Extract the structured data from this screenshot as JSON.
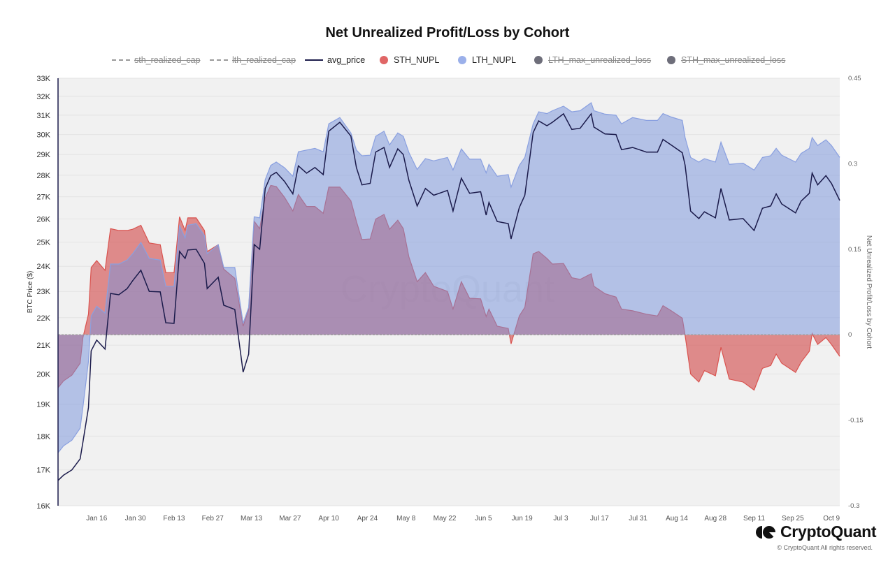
{
  "chart_data": {
    "type": "area",
    "title": "Net Unrealized Profit/Loss by Cohort",
    "ylabel_left": "BTC Price ($)",
    "ylabel_right": "Net Unrealized Profit/Loss by Cohort",
    "y_left_scale": "log",
    "y_left_range": [
      16000,
      33000
    ],
    "y_left_ticks": [
      "16K",
      "17K",
      "18K",
      "19K",
      "20K",
      "21K",
      "22K",
      "23K",
      "24K",
      "25K",
      "26K",
      "27K",
      "28K",
      "29K",
      "30K",
      "31K",
      "32K",
      "33K"
    ],
    "y_left_tick_values": [
      16000,
      17000,
      18000,
      19000,
      20000,
      21000,
      22000,
      23000,
      24000,
      25000,
      26000,
      27000,
      28000,
      29000,
      30000,
      31000,
      32000,
      33000
    ],
    "y_right_range": [
      -0.3,
      0.45
    ],
    "y_right_ticks": [
      "0.45",
      "0.3",
      "0.15",
      "0",
      "-0.15",
      "-0.3"
    ],
    "y_right_tick_values": [
      0.45,
      0.3,
      0.15,
      0,
      -0.15,
      -0.3
    ],
    "x_range": [
      "2023-01-02",
      "2023-10-12"
    ],
    "x_ticks": [
      "Jan 16",
      "Jan 30",
      "Feb 13",
      "Feb 27",
      "Mar 13",
      "Mar 27",
      "Apr 10",
      "Apr 24",
      "May 8",
      "May 22",
      "Jun 5",
      "Jun 19",
      "Jul 3",
      "Jul 17",
      "Jul 31",
      "Aug 14",
      "Aug 28",
      "Sep 11",
      "Sep 25",
      "Oct 9"
    ],
    "x_tick_dates": [
      "2023-01-16",
      "2023-01-30",
      "2023-02-13",
      "2023-02-27",
      "2023-03-13",
      "2023-03-27",
      "2023-04-10",
      "2023-04-24",
      "2023-05-08",
      "2023-05-22",
      "2023-06-05",
      "2023-06-19",
      "2023-07-03",
      "2023-07-17",
      "2023-07-31",
      "2023-08-14",
      "2023-08-28",
      "2023-09-11",
      "2023-09-25",
      "2023-10-09"
    ],
    "grid": true,
    "legend_position": "top",
    "watermark": "CryptoQuant",
    "x": [
      "2023-01-02",
      "2023-01-04",
      "2023-01-07",
      "2023-01-10",
      "2023-01-11",
      "2023-01-13",
      "2023-01-14",
      "2023-01-16",
      "2023-01-19",
      "2023-01-21",
      "2023-01-24",
      "2023-01-27",
      "2023-01-29",
      "2023-02-01",
      "2023-02-04",
      "2023-02-08",
      "2023-02-10",
      "2023-02-13",
      "2023-02-15",
      "2023-02-17",
      "2023-02-18",
      "2023-02-21",
      "2023-02-24",
      "2023-02-25",
      "2023-03-01",
      "2023-03-03",
      "2023-03-07",
      "2023-03-10",
      "2023-03-12",
      "2023-03-14",
      "2023-03-16",
      "2023-03-18",
      "2023-03-20",
      "2023-03-22",
      "2023-03-25",
      "2023-03-28",
      "2023-03-30",
      "2023-04-02",
      "2023-04-05",
      "2023-04-08",
      "2023-04-10",
      "2023-04-14",
      "2023-04-18",
      "2023-04-20",
      "2023-04-22",
      "2023-04-25",
      "2023-04-27",
      "2023-04-30",
      "2023-05-02",
      "2023-05-05",
      "2023-05-07",
      "2023-05-09",
      "2023-05-12",
      "2023-05-15",
      "2023-05-18",
      "2023-05-23",
      "2023-05-25",
      "2023-05-28",
      "2023-05-31",
      "2023-06-04",
      "2023-06-06",
      "2023-06-07",
      "2023-06-10",
      "2023-06-14",
      "2023-06-15",
      "2023-06-18",
      "2023-06-20",
      "2023-06-23",
      "2023-06-25",
      "2023-06-28",
      "2023-06-30",
      "2023-07-04",
      "2023-07-07",
      "2023-07-10",
      "2023-07-14",
      "2023-07-15",
      "2023-07-19",
      "2023-07-23",
      "2023-07-25",
      "2023-07-29",
      "2023-08-03",
      "2023-08-07",
      "2023-08-09",
      "2023-08-12",
      "2023-08-16",
      "2023-08-17",
      "2023-08-19",
      "2023-08-22",
      "2023-08-24",
      "2023-08-28",
      "2023-08-30",
      "2023-09-02",
      "2023-09-07",
      "2023-09-11",
      "2023-09-14",
      "2023-09-17",
      "2023-09-19",
      "2023-09-21",
      "2023-09-26",
      "2023-09-28",
      "2023-10-01",
      "2023-10-02",
      "2023-10-04",
      "2023-10-07",
      "2023-10-09",
      "2023-10-12"
    ],
    "series": [
      {
        "name": "sth_realized_cap",
        "axis": "left",
        "style": "dashed",
        "visible": false,
        "color": "#999999"
      },
      {
        "name": "lth_realized_cap",
        "axis": "left",
        "style": "dashed",
        "visible": false,
        "color": "#999999"
      },
      {
        "name": "avg_price",
        "axis": "left",
        "style": "line",
        "visible": true,
        "color": "#1b1b4b",
        "values": [
          16700,
          16850,
          17000,
          17320,
          17820,
          18890,
          20800,
          21180,
          20860,
          22920,
          22870,
          23110,
          23420,
          23840,
          23000,
          22980,
          21810,
          21790,
          24610,
          24320,
          24670,
          24700,
          24120,
          23110,
          23560,
          22470,
          22310,
          20060,
          20680,
          24900,
          24700,
          27380,
          27980,
          28140,
          27710,
          27130,
          28450,
          28100,
          28370,
          28030,
          30170,
          30630,
          29920,
          28370,
          27550,
          27620,
          29120,
          29350,
          28370,
          29280,
          29000,
          27770,
          26580,
          27380,
          27070,
          27290,
          26350,
          27860,
          27160,
          27230,
          26170,
          26740,
          25890,
          25800,
          25140,
          26510,
          27070,
          30100,
          30700,
          30450,
          30630,
          31070,
          30260,
          30320,
          31070,
          30380,
          30030,
          30000,
          29240,
          29350,
          29120,
          29120,
          29750,
          29470,
          29090,
          28480,
          26350,
          26020,
          26320,
          26050,
          27380,
          25960,
          26020,
          25500,
          26480,
          26580,
          27130,
          26670,
          26270,
          26800,
          27160,
          28100,
          27550,
          27980,
          27620,
          26830
        ]
      },
      {
        "name": "STH_NUPL",
        "axis": "right",
        "style": "area",
        "visible": true,
        "color": "#e06666",
        "values": [
          -0.093,
          -0.081,
          -0.071,
          -0.05,
          -0.005,
          0.036,
          0.118,
          0.13,
          0.113,
          0.186,
          0.183,
          0.183,
          0.185,
          0.192,
          0.161,
          0.158,
          0.109,
          0.109,
          0.207,
          0.183,
          0.205,
          0.205,
          0.183,
          0.146,
          0.158,
          0.115,
          0.099,
          0.015,
          0.044,
          0.199,
          0.186,
          0.24,
          0.262,
          0.26,
          0.241,
          0.217,
          0.246,
          0.225,
          0.225,
          0.213,
          0.259,
          0.259,
          0.235,
          0.199,
          0.167,
          0.168,
          0.203,
          0.211,
          0.185,
          0.201,
          0.186,
          0.137,
          0.093,
          0.109,
          0.085,
          0.076,
          0.045,
          0.093,
          0.064,
          0.063,
          0.032,
          0.045,
          0.015,
          0.011,
          -0.016,
          0.033,
          0.048,
          0.142,
          0.146,
          0.134,
          0.124,
          0.125,
          0.1,
          0.097,
          0.107,
          0.085,
          0.072,
          0.066,
          0.045,
          0.042,
          0.036,
          0.033,
          0.051,
          0.042,
          0.029,
          -0.001,
          -0.069,
          -0.083,
          -0.063,
          -0.072,
          -0.022,
          -0.078,
          -0.083,
          -0.097,
          -0.059,
          -0.054,
          -0.034,
          -0.05,
          -0.066,
          -0.048,
          -0.029,
          0.002,
          -0.017,
          -0.005,
          -0.017,
          -0.038
        ]
      },
      {
        "name": "LTH_NUPL",
        "axis": "right",
        "style": "area",
        "visible": true,
        "color": "#9bb0ea",
        "values": [
          -0.207,
          -0.195,
          -0.185,
          -0.164,
          -0.127,
          -0.047,
          0.033,
          0.05,
          0.038,
          0.124,
          0.124,
          0.131,
          0.142,
          0.162,
          0.134,
          0.131,
          0.085,
          0.085,
          0.191,
          0.17,
          0.192,
          0.195,
          0.174,
          0.142,
          0.158,
          0.118,
          0.118,
          0.02,
          0.048,
          0.207,
          0.205,
          0.272,
          0.297,
          0.303,
          0.293,
          0.278,
          0.321,
          0.324,
          0.327,
          0.321,
          0.37,
          0.381,
          0.354,
          0.324,
          0.314,
          0.315,
          0.348,
          0.357,
          0.333,
          0.354,
          0.348,
          0.32,
          0.29,
          0.309,
          0.305,
          0.311,
          0.289,
          0.326,
          0.308,
          0.308,
          0.284,
          0.299,
          0.278,
          0.281,
          0.259,
          0.297,
          0.311,
          0.37,
          0.391,
          0.388,
          0.393,
          0.401,
          0.391,
          0.393,
          0.407,
          0.393,
          0.387,
          0.385,
          0.37,
          0.381,
          0.376,
          0.376,
          0.388,
          0.382,
          0.376,
          0.346,
          0.311,
          0.303,
          0.309,
          0.303,
          0.338,
          0.299,
          0.301,
          0.289,
          0.311,
          0.314,
          0.327,
          0.315,
          0.303,
          0.318,
          0.327,
          0.346,
          0.332,
          0.342,
          0.332,
          0.311
        ]
      },
      {
        "name": "LTH_max_unrealized_loss",
        "axis": "right",
        "style": "area",
        "visible": false,
        "color": "#6e6e7a"
      },
      {
        "name": "STH_max_unrealized_loss",
        "axis": "right",
        "style": "area",
        "visible": false,
        "color": "#6e6e7a"
      }
    ]
  },
  "branding": {
    "logo_text": "CryptoQuant",
    "copyright": "© CryptoQuant All rights reserved."
  }
}
